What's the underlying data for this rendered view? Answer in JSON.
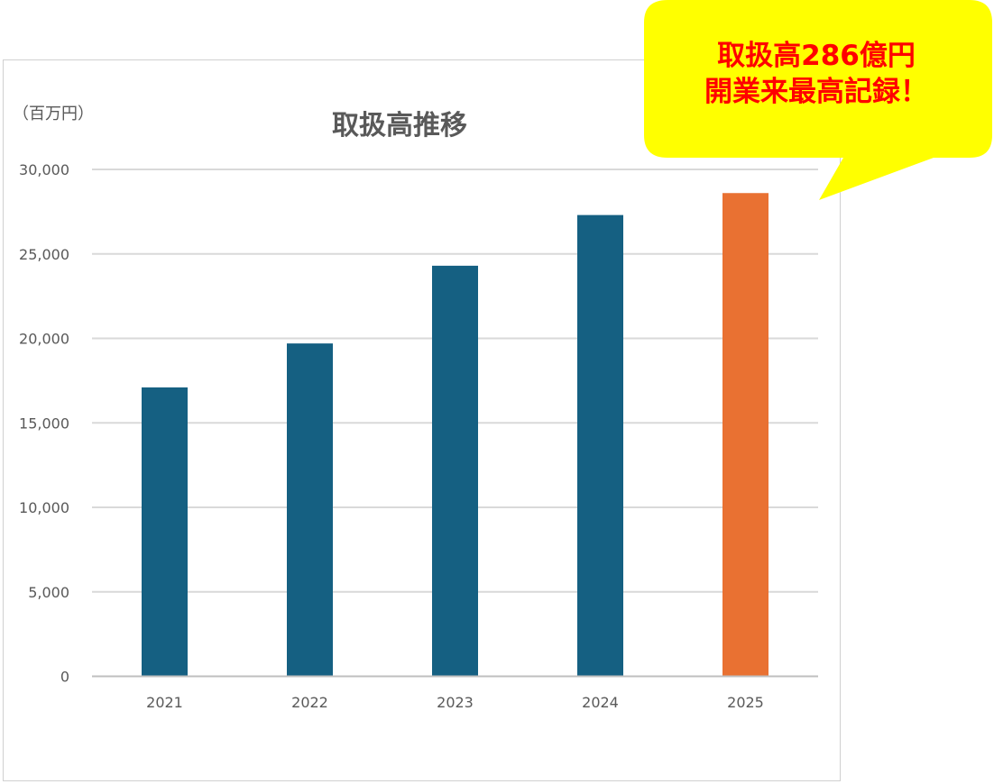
{
  "chart_data": {
    "type": "bar",
    "title": "取扱高推移",
    "ylabel": "（百万円）",
    "xlabel": "",
    "categories": [
      "2021",
      "2022",
      "2023",
      "2024",
      "2025"
    ],
    "values": [
      17100,
      19700,
      24300,
      27300,
      28600
    ],
    "bar_colors": [
      "#156082",
      "#156082",
      "#156082",
      "#156082",
      "#e97132"
    ],
    "ylim": [
      0,
      30000
    ],
    "yticks": [
      0,
      5000,
      10000,
      15000,
      20000,
      25000,
      30000
    ],
    "ytick_labels": [
      "0",
      "5,000",
      "10,000",
      "15,000",
      "20,000",
      "25,000",
      "30,000"
    ],
    "grid": true,
    "legend": "none"
  },
  "callout": {
    "line1": "取扱高286億円",
    "line2": "開業来最高記録！",
    "background": "#ffff00",
    "text_color": "#ff0000"
  }
}
